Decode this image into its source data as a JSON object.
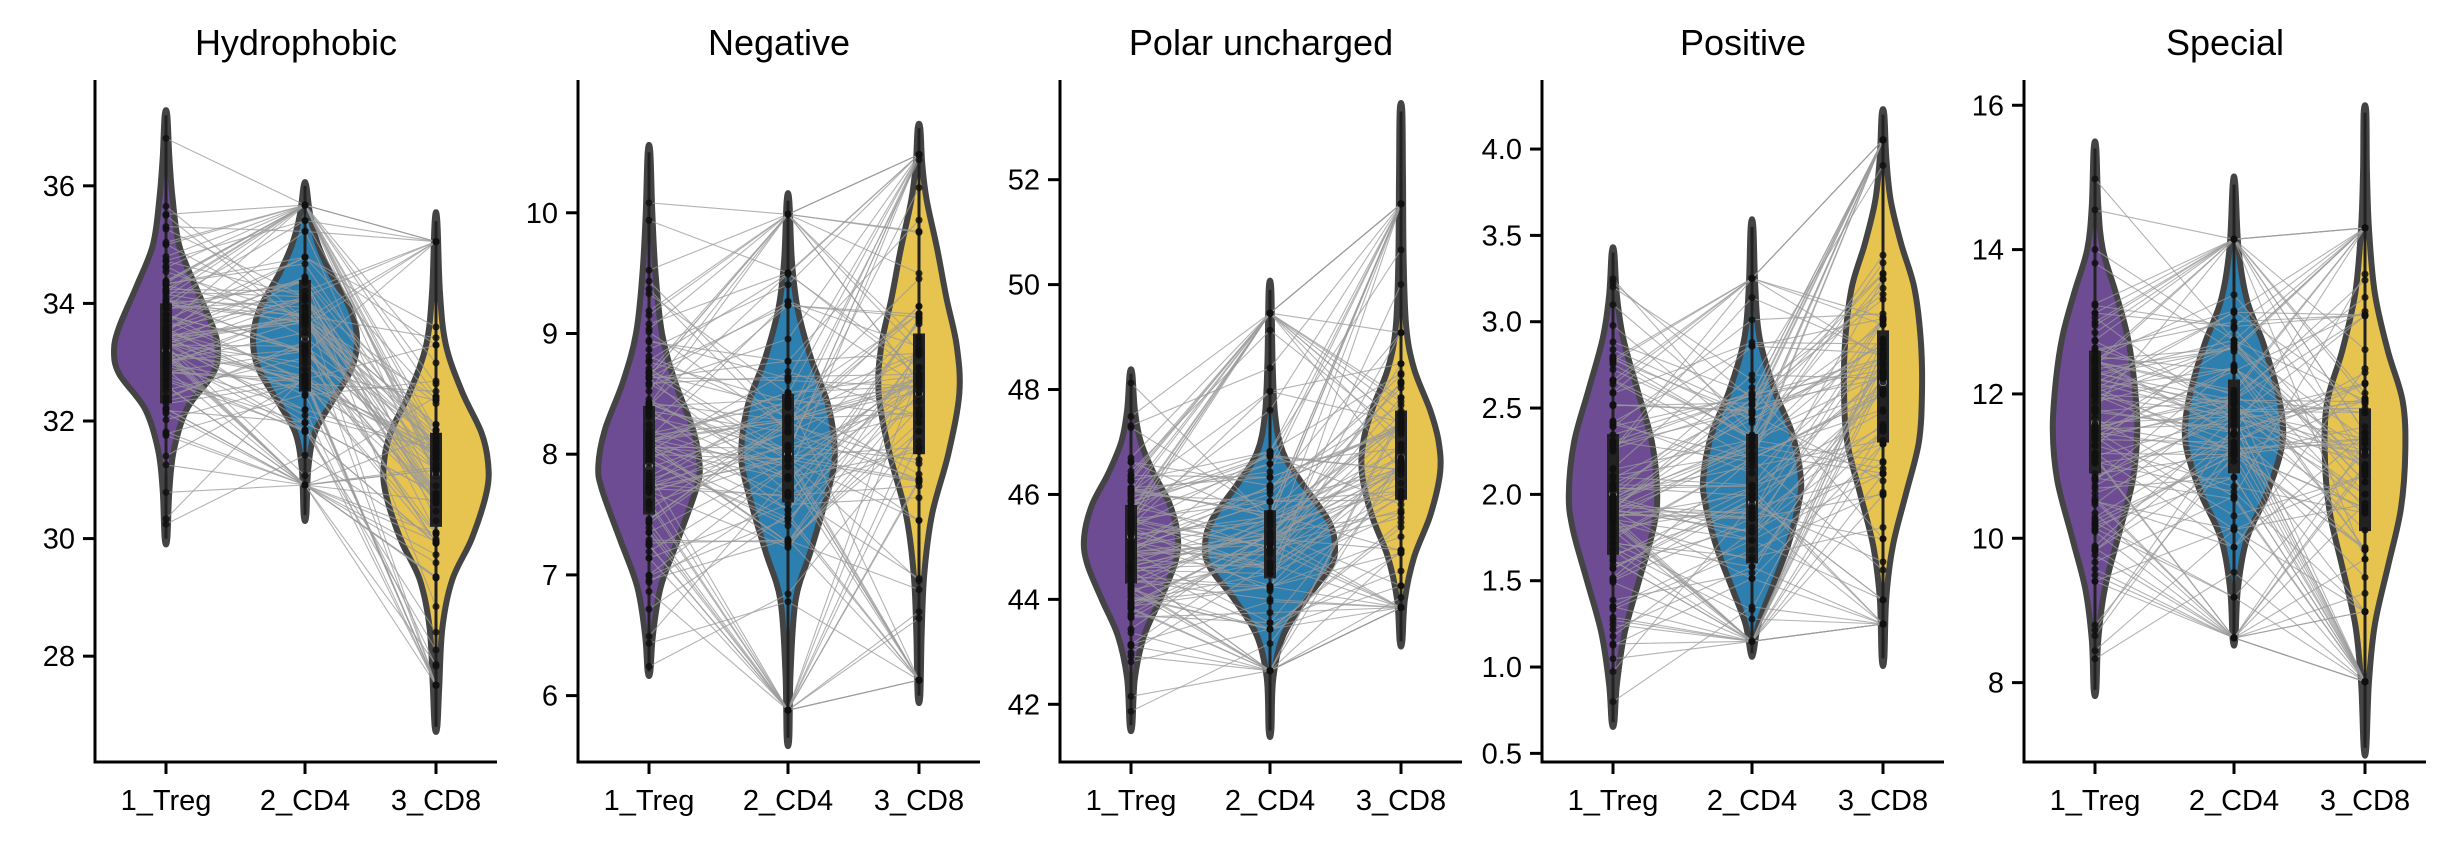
{
  "chart_data": {
    "type": "violin",
    "group_colors": [
      "#6d4c94",
      "#2d7fb0",
      "#e7c34f"
    ],
    "outline_color": "#444444",
    "pair_line_color": "#999999",
    "panels": [
      {
        "title": "Hydrophobic",
        "categories": [
          "1_Treg",
          "2_CD4",
          "3_CD8"
        ],
        "ylim": [
          26.2,
          37.8
        ],
        "yticks": [
          28,
          30,
          32,
          34,
          36
        ],
        "ytick_labels": [
          "28",
          "30",
          "32",
          "34",
          "36"
        ],
        "violins": [
          {
            "min": 30.0,
            "max": 37.2,
            "q1": 32.3,
            "median": 33.2,
            "q3": 34.0,
            "profile": [
              [
                30.0,
                0.02
              ],
              [
                30.8,
                0.05
              ],
              [
                31.5,
                0.12
              ],
              [
                32.2,
                0.32
              ],
              [
                32.8,
                0.72
              ],
              [
                33.2,
                0.8
              ],
              [
                33.6,
                0.72
              ],
              [
                34.3,
                0.45
              ],
              [
                35.0,
                0.2
              ],
              [
                35.8,
                0.1
              ],
              [
                36.5,
                0.05
              ],
              [
                37.2,
                0.02
              ]
            ]
          },
          {
            "min": 30.4,
            "max": 36.0,
            "q1": 32.5,
            "median": 33.4,
            "q3": 34.4,
            "profile": [
              [
                30.4,
                0.02
              ],
              [
                31.2,
                0.05
              ],
              [
                31.8,
                0.15
              ],
              [
                32.3,
                0.4
              ],
              [
                32.9,
                0.72
              ],
              [
                33.4,
                0.8
              ],
              [
                33.9,
                0.7
              ],
              [
                34.5,
                0.4
              ],
              [
                35.0,
                0.2
              ],
              [
                35.5,
                0.08
              ],
              [
                36.0,
                0.02
              ]
            ]
          },
          {
            "min": 26.8,
            "max": 35.4,
            "q1": 30.2,
            "median": 31.1,
            "q3": 31.8,
            "profile": [
              [
                26.8,
                0.02
              ],
              [
                27.5,
                0.05
              ],
              [
                28.5,
                0.1
              ],
              [
                29.3,
                0.25
              ],
              [
                30.0,
                0.55
              ],
              [
                30.8,
                0.78
              ],
              [
                31.3,
                0.8
              ],
              [
                31.8,
                0.7
              ],
              [
                32.5,
                0.4
              ],
              [
                33.3,
                0.15
              ],
              [
                34.2,
                0.06
              ],
              [
                35.4,
                0.02
              ]
            ]
          }
        ]
      },
      {
        "title": "Negative",
        "categories": [
          "1_Treg",
          "2_CD4",
          "3_CD8"
        ],
        "ylim": [
          5.45,
          11.1
        ],
        "yticks": [
          6,
          7,
          8,
          9,
          10
        ],
        "ytick_labels": [
          "6",
          "7",
          "8",
          "9",
          "10"
        ],
        "violins": [
          {
            "min": 6.2,
            "max": 10.5,
            "q1": 7.5,
            "median": 7.9,
            "q3": 8.4,
            "profile": [
              [
                6.2,
                0.02
              ],
              [
                6.5,
                0.06
              ],
              [
                6.9,
                0.18
              ],
              [
                7.3,
                0.45
              ],
              [
                7.7,
                0.72
              ],
              [
                7.9,
                0.78
              ],
              [
                8.2,
                0.68
              ],
              [
                8.6,
                0.4
              ],
              [
                9.0,
                0.2
              ],
              [
                9.5,
                0.1
              ],
              [
                10.0,
                0.05
              ],
              [
                10.5,
                0.02
              ]
            ]
          },
          {
            "min": 5.65,
            "max": 10.1,
            "q1": 7.6,
            "median": 8.0,
            "q3": 8.5,
            "profile": [
              [
                5.65,
                0.02
              ],
              [
                6.2,
                0.04
              ],
              [
                6.8,
                0.12
              ],
              [
                7.2,
                0.35
              ],
              [
                7.7,
                0.62
              ],
              [
                8.0,
                0.72
              ],
              [
                8.4,
                0.62
              ],
              [
                8.8,
                0.35
              ],
              [
                9.2,
                0.15
              ],
              [
                9.6,
                0.06
              ],
              [
                10.1,
                0.02
              ]
            ]
          },
          {
            "min": 6.0,
            "max": 10.7,
            "q1": 8.0,
            "median": 8.5,
            "q3": 9.0,
            "profile": [
              [
                6.0,
                0.02
              ],
              [
                6.5,
                0.04
              ],
              [
                7.0,
                0.08
              ],
              [
                7.5,
                0.2
              ],
              [
                8.0,
                0.45
              ],
              [
                8.5,
                0.62
              ],
              [
                8.9,
                0.58
              ],
              [
                9.3,
                0.42
              ],
              [
                9.7,
                0.28
              ],
              [
                10.1,
                0.12
              ],
              [
                10.4,
                0.05
              ],
              [
                10.7,
                0.02
              ]
            ]
          }
        ]
      },
      {
        "title": "Polar uncharged",
        "categories": [
          "1_Treg",
          "2_CD4",
          "3_CD8"
        ],
        "ylim": [
          40.9,
          53.9
        ],
        "yticks": [
          42,
          44,
          46,
          48,
          50,
          52
        ],
        "ytick_labels": [
          "42",
          "44",
          "46",
          "48",
          "50",
          "52"
        ],
        "violins": [
          {
            "min": 41.6,
            "max": 48.3,
            "q1": 44.3,
            "median": 45.2,
            "q3": 45.8,
            "profile": [
              [
                41.6,
                0.02
              ],
              [
                42.5,
                0.06
              ],
              [
                43.3,
                0.2
              ],
              [
                44.0,
                0.45
              ],
              [
                44.7,
                0.68
              ],
              [
                45.2,
                0.72
              ],
              [
                45.8,
                0.6
              ],
              [
                46.4,
                0.35
              ],
              [
                47.0,
                0.15
              ],
              [
                47.6,
                0.06
              ],
              [
                48.3,
                0.02
              ]
            ]
          },
          {
            "min": 41.5,
            "max": 49.9,
            "q1": 44.4,
            "median": 45.0,
            "q3": 45.7,
            "profile": [
              [
                41.5,
                0.02
              ],
              [
                42.5,
                0.05
              ],
              [
                43.3,
                0.2
              ],
              [
                44.0,
                0.55
              ],
              [
                44.6,
                0.92
              ],
              [
                45.0,
                1.0
              ],
              [
                45.5,
                0.9
              ],
              [
                46.2,
                0.5
              ],
              [
                46.8,
                0.2
              ],
              [
                47.5,
                0.08
              ],
              [
                48.5,
                0.04
              ],
              [
                49.9,
                0.02
              ]
            ]
          },
          {
            "min": 43.2,
            "max": 53.3,
            "q1": 45.9,
            "median": 46.7,
            "q3": 47.6,
            "profile": [
              [
                43.2,
                0.02
              ],
              [
                44.0,
                0.06
              ],
              [
                44.8,
                0.2
              ],
              [
                45.6,
                0.45
              ],
              [
                46.4,
                0.6
              ],
              [
                47.0,
                0.58
              ],
              [
                47.6,
                0.45
              ],
              [
                48.4,
                0.2
              ],
              [
                49.2,
                0.08
              ],
              [
                50.5,
                0.04
              ],
              [
                52.0,
                0.03
              ],
              [
                53.3,
                0.02
              ]
            ]
          }
        ]
      },
      {
        "title": "Positive",
        "categories": [
          "1_Treg",
          "2_CD4",
          "3_CD8"
        ],
        "ylim": [
          0.45,
          4.4
        ],
        "yticks": [
          0.5,
          1.0,
          1.5,
          2.0,
          2.5,
          3.0,
          3.5,
          4.0
        ],
        "ytick_labels": [
          "0.5",
          "1.0",
          "1.5",
          "2.0",
          "2.5",
          "3.0",
          "3.5",
          "4.0"
        ],
        "violins": [
          {
            "min": 0.68,
            "max": 3.4,
            "q1": 1.65,
            "median": 2.0,
            "q3": 2.35,
            "profile": [
              [
                0.68,
                0.02
              ],
              [
                0.9,
                0.06
              ],
              [
                1.2,
                0.18
              ],
              [
                1.5,
                0.4
              ],
              [
                1.8,
                0.62
              ],
              [
                2.0,
                0.68
              ],
              [
                2.3,
                0.6
              ],
              [
                2.6,
                0.38
              ],
              [
                2.9,
                0.16
              ],
              [
                3.15,
                0.06
              ],
              [
                3.4,
                0.02
              ]
            ]
          },
          {
            "min": 1.08,
            "max": 3.55,
            "q1": 1.6,
            "median": 1.95,
            "q3": 2.35,
            "profile": [
              [
                1.08,
                0.02
              ],
              [
                1.25,
                0.1
              ],
              [
                1.45,
                0.3
              ],
              [
                1.7,
                0.55
              ],
              [
                1.95,
                0.72
              ],
              [
                2.1,
                0.75
              ],
              [
                2.35,
                0.62
              ],
              [
                2.6,
                0.35
              ],
              [
                2.9,
                0.12
              ],
              [
                3.2,
                0.05
              ],
              [
                3.55,
                0.02
              ]
            ]
          },
          {
            "min": 1.05,
            "max": 4.2,
            "q1": 2.3,
            "median": 2.65,
            "q3": 2.95,
            "profile": [
              [
                1.05,
                0.02
              ],
              [
                1.4,
                0.05
              ],
              [
                1.7,
                0.15
              ],
              [
                2.0,
                0.35
              ],
              [
                2.3,
                0.55
              ],
              [
                2.6,
                0.6
              ],
              [
                2.9,
                0.58
              ],
              [
                3.2,
                0.48
              ],
              [
                3.45,
                0.28
              ],
              [
                3.7,
                0.12
              ],
              [
                3.95,
                0.05
              ],
              [
                4.2,
                0.02
              ]
            ]
          }
        ]
      },
      {
        "title": "Special",
        "categories": [
          "1_Treg",
          "2_CD4",
          "3_CD8"
        ],
        "ylim": [
          6.9,
          16.35
        ],
        "yticks": [
          8,
          10,
          12,
          14,
          16
        ],
        "ytick_labels": [
          "8",
          "10",
          "12",
          "14",
          "16"
        ],
        "violins": [
          {
            "min": 7.9,
            "max": 15.4,
            "q1": 10.9,
            "median": 11.6,
            "q3": 12.6,
            "profile": [
              [
                7.9,
                0.02
              ],
              [
                8.6,
                0.05
              ],
              [
                9.3,
                0.15
              ],
              [
                10.0,
                0.35
              ],
              [
                10.8,
                0.58
              ],
              [
                11.5,
                0.65
              ],
              [
                12.2,
                0.6
              ],
              [
                12.8,
                0.5
              ],
              [
                13.4,
                0.32
              ],
              [
                14.0,
                0.12
              ],
              [
                14.6,
                0.05
              ],
              [
                15.4,
                0.02
              ]
            ]
          },
          {
            "min": 8.6,
            "max": 14.9,
            "q1": 10.9,
            "median": 11.5,
            "q3": 12.2,
            "profile": [
              [
                8.6,
                0.02
              ],
              [
                9.3,
                0.06
              ],
              [
                10.0,
                0.2
              ],
              [
                10.6,
                0.5
              ],
              [
                11.2,
                0.72
              ],
              [
                11.6,
                0.75
              ],
              [
                12.1,
                0.65
              ],
              [
                12.7,
                0.45
              ],
              [
                13.3,
                0.2
              ],
              [
                14.0,
                0.07
              ],
              [
                14.9,
                0.02
              ]
            ]
          },
          {
            "min": 7.1,
            "max": 15.9,
            "q1": 10.1,
            "median": 11.2,
            "q3": 11.8,
            "profile": [
              [
                7.1,
                0.02
              ],
              [
                8.0,
                0.06
              ],
              [
                8.8,
                0.15
              ],
              [
                9.6,
                0.35
              ],
              [
                10.4,
                0.55
              ],
              [
                11.2,
                0.62
              ],
              [
                11.9,
                0.58
              ],
              [
                12.6,
                0.35
              ],
              [
                13.4,
                0.15
              ],
              [
                14.3,
                0.06
              ],
              [
                15.1,
                0.03
              ],
              [
                15.9,
                0.02
              ]
            ]
          }
        ]
      }
    ]
  }
}
